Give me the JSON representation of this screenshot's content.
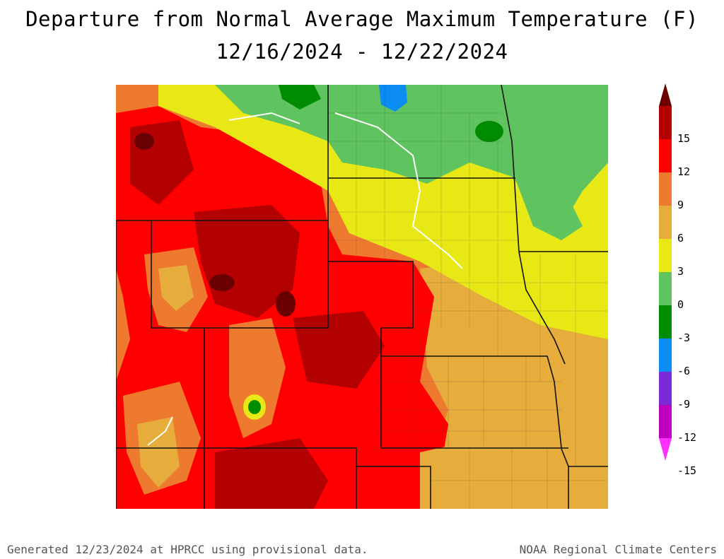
{
  "title": {
    "line1": "Departure from Normal Average Maximum Temperature (F)",
    "line2": "12/16/2024 - 12/22/2024"
  },
  "legend": {
    "labels": [
      "15",
      "12",
      "9",
      "6",
      "3",
      "0",
      "-3",
      "-6",
      "-9",
      "-12",
      "-15"
    ],
    "colors": [
      "#6b0000",
      "#b30000",
      "#ff0000",
      "#ee7a2f",
      "#e6ac3c",
      "#e8e817",
      "#5fc35f",
      "#008c00",
      "#0a8cf0",
      "#7a2ad6",
      "#c000c0",
      "#ff2eff"
    ]
  },
  "footer": {
    "left": "Generated 12/23/2024 at HPRCC using provisional data.",
    "right": "NOAA Regional Climate Centers"
  }
}
